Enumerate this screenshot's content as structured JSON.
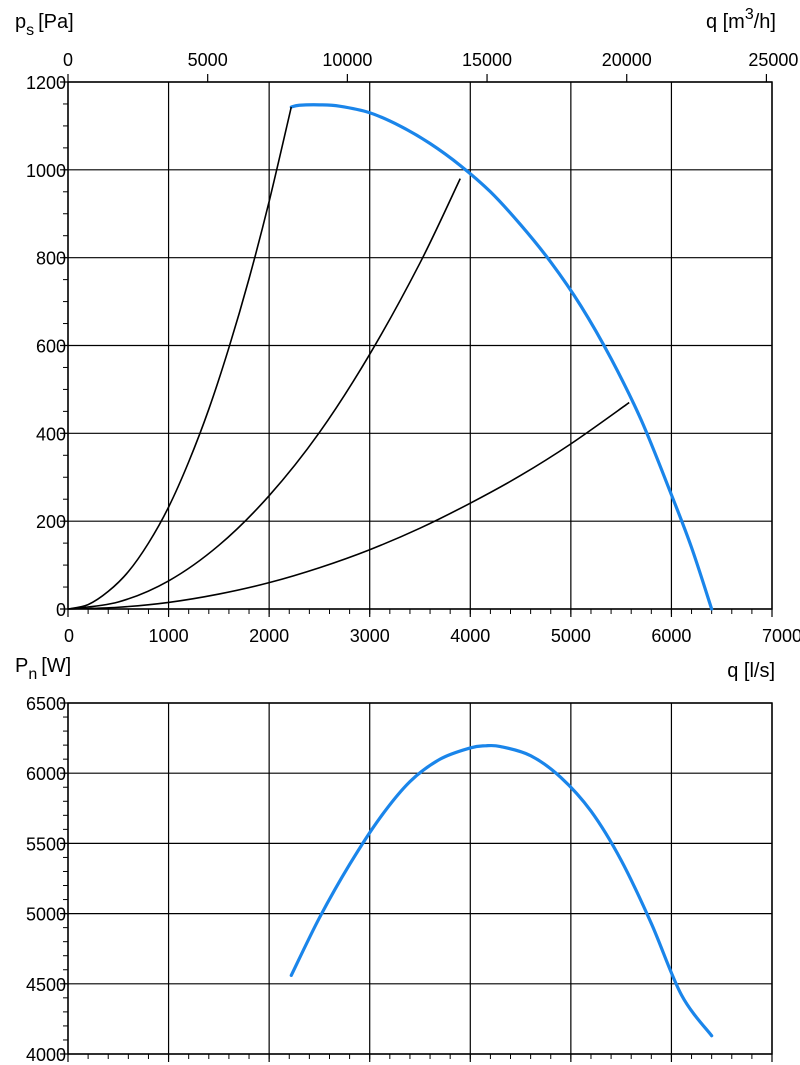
{
  "chart_data": [
    {
      "type": "line",
      "title": "",
      "y_label": {
        "symbol": "p",
        "subscript": "s",
        "unit": "[Pa]"
      },
      "x_label": "q [l/s]",
      "secondary_x_label": {
        "prefix": "q [m",
        "superscript": "3",
        "suffix": "/h]"
      },
      "xlim": [
        0,
        7000
      ],
      "ylim": [
        0,
        1200
      ],
      "x_ticks": [
        0,
        1000,
        2000,
        3000,
        4000,
        5000,
        6000,
        7000
      ],
      "y_ticks": [
        0,
        200,
        400,
        600,
        800,
        1000,
        1200
      ],
      "secondary_x_ticks": [
        0,
        5000,
        10000,
        15000,
        20000,
        25000
      ],
      "secondary_x_factor": 3.6,
      "grid": true,
      "series": [
        {
          "kind": "fan-curve",
          "color": "#1a85ea",
          "x": [
            2220,
            2300,
            2500,
            2700,
            3000,
            3300,
            3600,
            3900,
            4200,
            4500,
            4800,
            5100,
            5400,
            5700,
            6000,
            6200,
            6400
          ],
          "y": [
            1143,
            1147,
            1148,
            1145,
            1130,
            1100,
            1060,
            1010,
            950,
            875,
            790,
            690,
            570,
            430,
            260,
            140,
            0
          ]
        },
        {
          "kind": "system-curve",
          "color": "#000000",
          "x": [
            0,
            200,
            400,
            600,
            800,
            1000,
            1200,
            1400,
            1600,
            1800,
            2000,
            2220
          ],
          "y": [
            0,
            10,
            40,
            85,
            150,
            232,
            335,
            455,
            595,
            752,
            928,
            1143
          ]
        },
        {
          "kind": "system-curve",
          "color": "#000000",
          "x": [
            0,
            500,
            1000,
            1500,
            2000,
            2500,
            3000,
            3500,
            3900
          ],
          "y": [
            0,
            16,
            64,
            145,
            258,
            402,
            580,
            788,
            980
          ]
        },
        {
          "kind": "system-curve",
          "color": "#000000",
          "x": [
            0,
            500,
            1000,
            1500,
            2000,
            2500,
            3000,
            3500,
            4000,
            4500,
            5000,
            5580
          ],
          "y": [
            0,
            4,
            15,
            34,
            60,
            94,
            135,
            184,
            241,
            304,
            376,
            470
          ]
        }
      ]
    },
    {
      "type": "line",
      "title": "",
      "y_label": {
        "symbol": "P",
        "subscript": "n",
        "unit": "[W]"
      },
      "xlim": [
        0,
        7000
      ],
      "ylim": [
        4000,
        6500
      ],
      "x_ticks": [
        0,
        1000,
        2000,
        3000,
        4000,
        5000,
        6000,
        7000
      ],
      "y_ticks": [
        4000,
        4500,
        5000,
        5500,
        6000,
        6500
      ],
      "grid": true,
      "series": [
        {
          "kind": "power-curve",
          "color": "#1a85ea",
          "x": [
            2220,
            2500,
            2800,
            3100,
            3400,
            3700,
            4000,
            4150,
            4300,
            4600,
            4900,
            5200,
            5500,
            5800,
            6100,
            6400
          ],
          "y": [
            4560,
            4970,
            5350,
            5680,
            5940,
            6100,
            6180,
            6195,
            6190,
            6125,
            5970,
            5730,
            5380,
            4930,
            4420,
            4130
          ]
        }
      ]
    }
  ]
}
